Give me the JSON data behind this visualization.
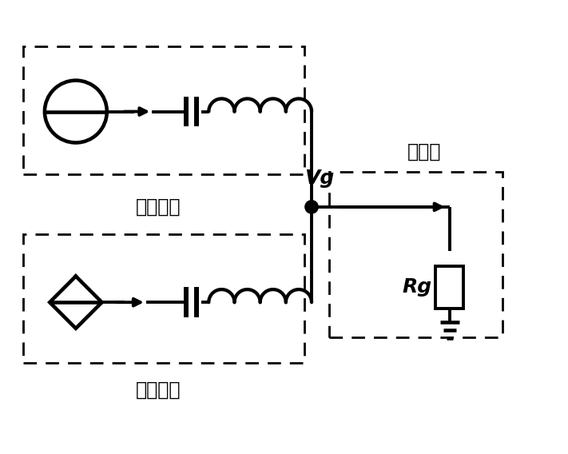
{
  "bg_color": "#ffffff",
  "line_color": "#000000",
  "line_width": 2.8,
  "font_size_label": 17,
  "font_size_vg": 18,
  "font_size_rg": 18,
  "text_huanliu": "换流站侧",
  "text_fengdian": "风电场侧",
  "text_guzhang": "故障点",
  "text_vg": "Vg",
  "text_rg": "Rg"
}
